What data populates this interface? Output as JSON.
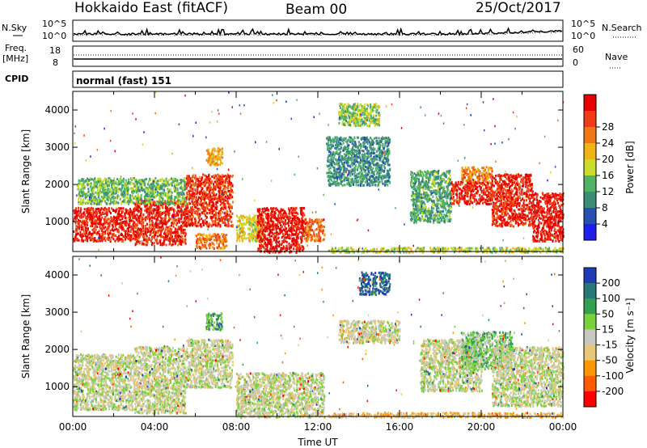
{
  "header": {
    "station": "Hokkaido East (fitACF)",
    "beam": "Beam 00",
    "date": "25/Oct/2017"
  },
  "labels": {
    "nsky": "N.Sky",
    "nsearch": "N.Search",
    "freq": "Freq.",
    "freq_unit": "[MHz]",
    "nave": "Nave",
    "cpid": "CPID",
    "cpid_value": "normal (fast) 151",
    "noise_tick_top": "10^5",
    "noise_tick_bottom": "10^0",
    "freq_tick_top": "18",
    "freq_tick_bottom": "8",
    "nave_tick_top": "60",
    "nave_tick_bottom": "0"
  },
  "colors": {
    "power": [
      "#1e1ef0",
      "#2850b4",
      "#3c8c78",
      "#50b464",
      "#c8dc28",
      "#f0b414",
      "#f07814",
      "#f03c14",
      "#e60000"
    ],
    "velocity": [
      "#ff0000",
      "#ff5a00",
      "#ff9600",
      "#e6c878",
      "#c8c8c0",
      "#78d23c",
      "#32a050",
      "#287878",
      "#1e3cb4"
    ]
  },
  "chart_data": [
    {
      "type": "heatmap",
      "quantity": "power",
      "xlabel": "",
      "ylabel": "Slant Range [km]",
      "xlim": [
        0,
        24
      ],
      "ylim": [
        200,
        4500
      ],
      "yticks": [
        1000,
        2000,
        3000,
        4000
      ],
      "colorbar": {
        "label": "Power [dB]",
        "range": [
          0,
          32
        ],
        "ticks": [
          "4",
          "8",
          "12",
          "16",
          "20",
          "24",
          "28"
        ]
      },
      "regions": [
        {
          "t": [
            0.0,
            3.0
          ],
          "r": [
            500,
            1400
          ],
          "level": 0.9
        },
        {
          "t": [
            3.0,
            5.5
          ],
          "r": [
            400,
            1600
          ],
          "level": 0.88
        },
        {
          "t": [
            5.5,
            7.8
          ],
          "r": [
            900,
            2300
          ],
          "level": 0.85
        },
        {
          "t": [
            0.2,
            5.5
          ],
          "r": [
            1500,
            2200
          ],
          "level": 0.4
        },
        {
          "t": [
            6.5,
            7.3
          ],
          "r": [
            2550,
            3000
          ],
          "level": 0.62
        },
        {
          "t": [
            6.0,
            7.5
          ],
          "r": [
            300,
            700
          ],
          "level": 0.72
        },
        {
          "t": [
            8.0,
            9.3
          ],
          "r": [
            500,
            1200
          ],
          "level": 0.55
        },
        {
          "t": [
            9.0,
            11.3
          ],
          "r": [
            200,
            1400
          ],
          "level": 0.92
        },
        {
          "t": [
            11.3,
            12.3
          ],
          "r": [
            500,
            1100
          ],
          "level": 0.75
        },
        {
          "t": [
            12.4,
            15.5
          ],
          "r": [
            2000,
            3300
          ],
          "level": 0.3
        },
        {
          "t": [
            13.0,
            15.0
          ],
          "r": [
            3600,
            4200
          ],
          "level": 0.45
        },
        {
          "t": [
            16.5,
            18.5
          ],
          "r": [
            1000,
            2400
          ],
          "level": 0.35
        },
        {
          "t": [
            18.5,
            20.5
          ],
          "r": [
            1500,
            2100
          ],
          "level": 0.9
        },
        {
          "t": [
            19.0,
            20.5
          ],
          "r": [
            2100,
            2500
          ],
          "level": 0.7
        },
        {
          "t": [
            20.5,
            22.5
          ],
          "r": [
            900,
            2300
          ],
          "level": 0.88
        },
        {
          "t": [
            22.5,
            24.0
          ],
          "r": [
            500,
            1800
          ],
          "level": 0.92
        },
        {
          "t": [
            12.5,
            24.0
          ],
          "r": [
            200,
            330
          ],
          "level": 0.5
        }
      ]
    },
    {
      "type": "heatmap",
      "quantity": "velocity",
      "xlabel": "Time UT",
      "ylabel": "Slant Range [km]",
      "xlim": [
        0,
        24
      ],
      "ylim": [
        200,
        4500
      ],
      "yticks": [
        1000,
        2000,
        3000,
        4000
      ],
      "xticks": [
        "00:00",
        "04:00",
        "08:00",
        "12:00",
        "16:00",
        "20:00",
        "00:00"
      ],
      "colorbar": {
        "label": "Velocity [m s⁻¹]",
        "ticks": [
          "200",
          "100",
          "50",
          "15",
          "-15",
          "-50",
          "-100",
          "-200"
        ]
      },
      "regions": [
        {
          "t": [
            0.0,
            3.0
          ],
          "r": [
            400,
            1900
          ],
          "level": 0.5
        },
        {
          "t": [
            3.0,
            5.5
          ],
          "r": [
            300,
            2100
          ],
          "level": 0.48
        },
        {
          "t": [
            5.5,
            7.8
          ],
          "r": [
            1000,
            2300
          ],
          "level": 0.5
        },
        {
          "t": [
            6.5,
            7.3
          ],
          "r": [
            2550,
            3000
          ],
          "level": 0.7
        },
        {
          "t": [
            8.0,
            12.3
          ],
          "r": [
            200,
            1400
          ],
          "level": 0.5
        },
        {
          "t": [
            13.0,
            16.0
          ],
          "r": [
            2200,
            2800
          ],
          "level": 0.46
        },
        {
          "t": [
            14.0,
            15.5
          ],
          "r": [
            3500,
            4100
          ],
          "level": 0.9
        },
        {
          "t": [
            17.0,
            20.0
          ],
          "r": [
            900,
            2300
          ],
          "level": 0.5
        },
        {
          "t": [
            19.0,
            21.5
          ],
          "r": [
            1500,
            2500
          ],
          "level": 0.62
        },
        {
          "t": [
            20.5,
            24.0
          ],
          "r": [
            500,
            2100
          ],
          "level": 0.5
        },
        {
          "t": [
            12.5,
            24.0
          ],
          "r": [
            200,
            330
          ],
          "level": 0.35
        }
      ]
    }
  ]
}
